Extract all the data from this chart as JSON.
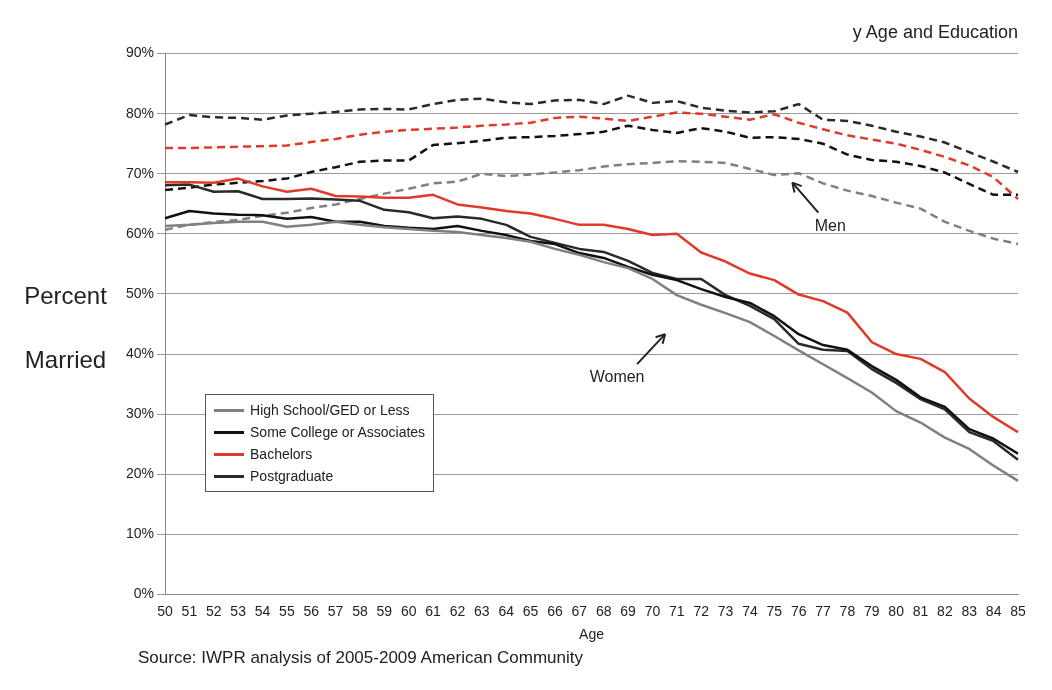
{
  "chart_data": {
    "type": "line",
    "title": "y Age and Education",
    "xlabel": "Age",
    "ylabel": "Percent Married",
    "categories": [
      "50",
      "51",
      "52",
      "53",
      "54",
      "55",
      "56",
      "57",
      "58",
      "59",
      "60",
      "61",
      "62",
      "63",
      "64",
      "65",
      "66",
      "67",
      "68",
      "69",
      "70",
      "71",
      "72",
      "73",
      "74",
      "75",
      "76",
      "77",
      "78",
      "79",
      "80",
      "81",
      "82",
      "83",
      "84",
      "85"
    ],
    "series": [
      {
        "name": "High School/GED or Less",
        "color": "#808080",
        "line_style": "solid",
        "values": [
          61.3,
          61.5,
          61.8,
          62,
          62,
          61.2,
          61.5,
          62,
          61.5,
          61.1,
          60.8,
          60.5,
          60.3,
          59.8,
          59.3,
          58.7,
          57.5,
          56.5,
          55.3,
          54.3,
          52.5,
          49.8,
          48.2,
          46.8,
          45.3,
          43,
          40.6,
          38.3,
          36,
          33.6,
          30.5,
          28.6,
          26.1,
          24.2,
          21.4,
          18.9
        ]
      },
      {
        "name": "Some College or Associates",
        "color": "#111111",
        "line_style": "solid",
        "values": [
          62.6,
          63.8,
          63.4,
          63.2,
          63.1,
          62.5,
          62.8,
          62,
          62,
          61.3,
          61,
          60.8,
          61.3,
          60.5,
          59.8,
          58.8,
          58.3,
          56.8,
          56,
          54.5,
          53.2,
          52.3,
          50.8,
          49.5,
          48.5,
          46.3,
          43.3,
          41.5,
          40.7,
          38,
          35.7,
          32.8,
          31.2,
          27.5,
          25.9,
          23.4
        ]
      },
      {
        "name": "Bachelors",
        "color": "#e03a2a",
        "line_style": "solid",
        "values": [
          68.6,
          68.6,
          68.5,
          69.2,
          67.9,
          67,
          67.5,
          66.3,
          66.2,
          66,
          66,
          66.5,
          64.9,
          64.4,
          63.8,
          63.4,
          62.5,
          61.5,
          61.5,
          60.8,
          59.8,
          60,
          56.9,
          55.4,
          53.4,
          52.3,
          49.9,
          48.8,
          46.9,
          42,
          40,
          39.2,
          37,
          32.6,
          29.5,
          27
        ]
      },
      {
        "name": "Postgraduate",
        "color": "#2a2a2a",
        "line_style": "solid",
        "values": [
          68.1,
          68.2,
          67,
          67.1,
          65.8,
          65.8,
          65.9,
          65.7,
          65.5,
          64,
          63.6,
          62.6,
          62.9,
          62.5,
          61.5,
          59.5,
          58.5,
          57.5,
          57,
          55.5,
          53.5,
          52.5,
          52.5,
          49.8,
          48,
          45.8,
          41.7,
          40.7,
          40.5,
          37.5,
          35.2,
          32.5,
          30.8,
          27,
          25.5,
          22.4
        ]
      },
      {
        "color": "#808080",
        "line_style": "dashed",
        "values": [
          60.7,
          61.5,
          62,
          62.3,
          63,
          63.5,
          64.3,
          64.9,
          65.8,
          66.7,
          67.5,
          68.4,
          68.7,
          70,
          69.6,
          69.9,
          70.2,
          70.6,
          71.2,
          71.6,
          71.8,
          72.1,
          72,
          71.8,
          70.8,
          69.8,
          70.1,
          68.4,
          67.2,
          66.3,
          65.2,
          64.2,
          62,
          60.5,
          59.2,
          58.3
        ]
      },
      {
        "color": "#111111",
        "line_style": "dashed",
        "values": [
          67.3,
          67.7,
          68.2,
          68.5,
          68.8,
          69.2,
          70.3,
          71.1,
          72,
          72.2,
          72.2,
          74.8,
          75.1,
          75.5,
          76,
          76.1,
          76.3,
          76.6,
          77,
          78,
          77.3,
          76.8,
          77.6,
          77,
          76,
          76.1,
          75.8,
          75,
          73.2,
          72.3,
          72,
          71.3,
          70.2,
          68.3,
          66.5,
          66.5
        ]
      },
      {
        "color": "#e03a2a",
        "line_style": "dashed",
        "values": [
          74.3,
          74.3,
          74.4,
          74.5,
          74.6,
          74.7,
          75.3,
          75.8,
          76.5,
          77,
          77.3,
          77.5,
          77.7,
          78,
          78.2,
          78.5,
          79.3,
          79.5,
          79.2,
          78.8,
          79.5,
          80.2,
          80,
          79.5,
          79,
          79.9,
          78.5,
          77.4,
          76.4,
          75.7,
          75,
          74,
          72.8,
          71.4,
          69.4,
          65.8
        ]
      },
      {
        "color": "#2a2a2a",
        "line_style": "dashed",
        "values": [
          78.2,
          79.8,
          79.4,
          79.3,
          79,
          79.7,
          80,
          80.3,
          80.7,
          80.8,
          80.7,
          81.6,
          82.3,
          82.5,
          81.9,
          81.6,
          82.2,
          82.3,
          81.6,
          83,
          81.8,
          82.1,
          81,
          80.5,
          80.2,
          80.4,
          81.6,
          79,
          78.8,
          78,
          77,
          76.2,
          75.2,
          73.6,
          72,
          70.3
        ]
      }
    ],
    "ylim": [
      0,
      90
    ],
    "yticks": [
      {
        "value": 0,
        "label": "0%"
      },
      {
        "value": 10,
        "label": "10%"
      },
      {
        "value": 20,
        "label": "20%"
      },
      {
        "value": 30,
        "label": "30%"
      },
      {
        "value": 40,
        "label": "40%"
      },
      {
        "value": 50,
        "label": "50%"
      },
      {
        "value": 60,
        "label": "60%"
      },
      {
        "value": 70,
        "label": "70%"
      },
      {
        "value": 80,
        "label": "80%"
      },
      {
        "value": 90,
        "label": "90%"
      }
    ],
    "grid": "y",
    "legend": "bottom left",
    "marker": "none",
    "annotations": [
      "Men",
      "Women",
      "Source: IWPR analysis of 2005-2009 American Community"
    ]
  }
}
